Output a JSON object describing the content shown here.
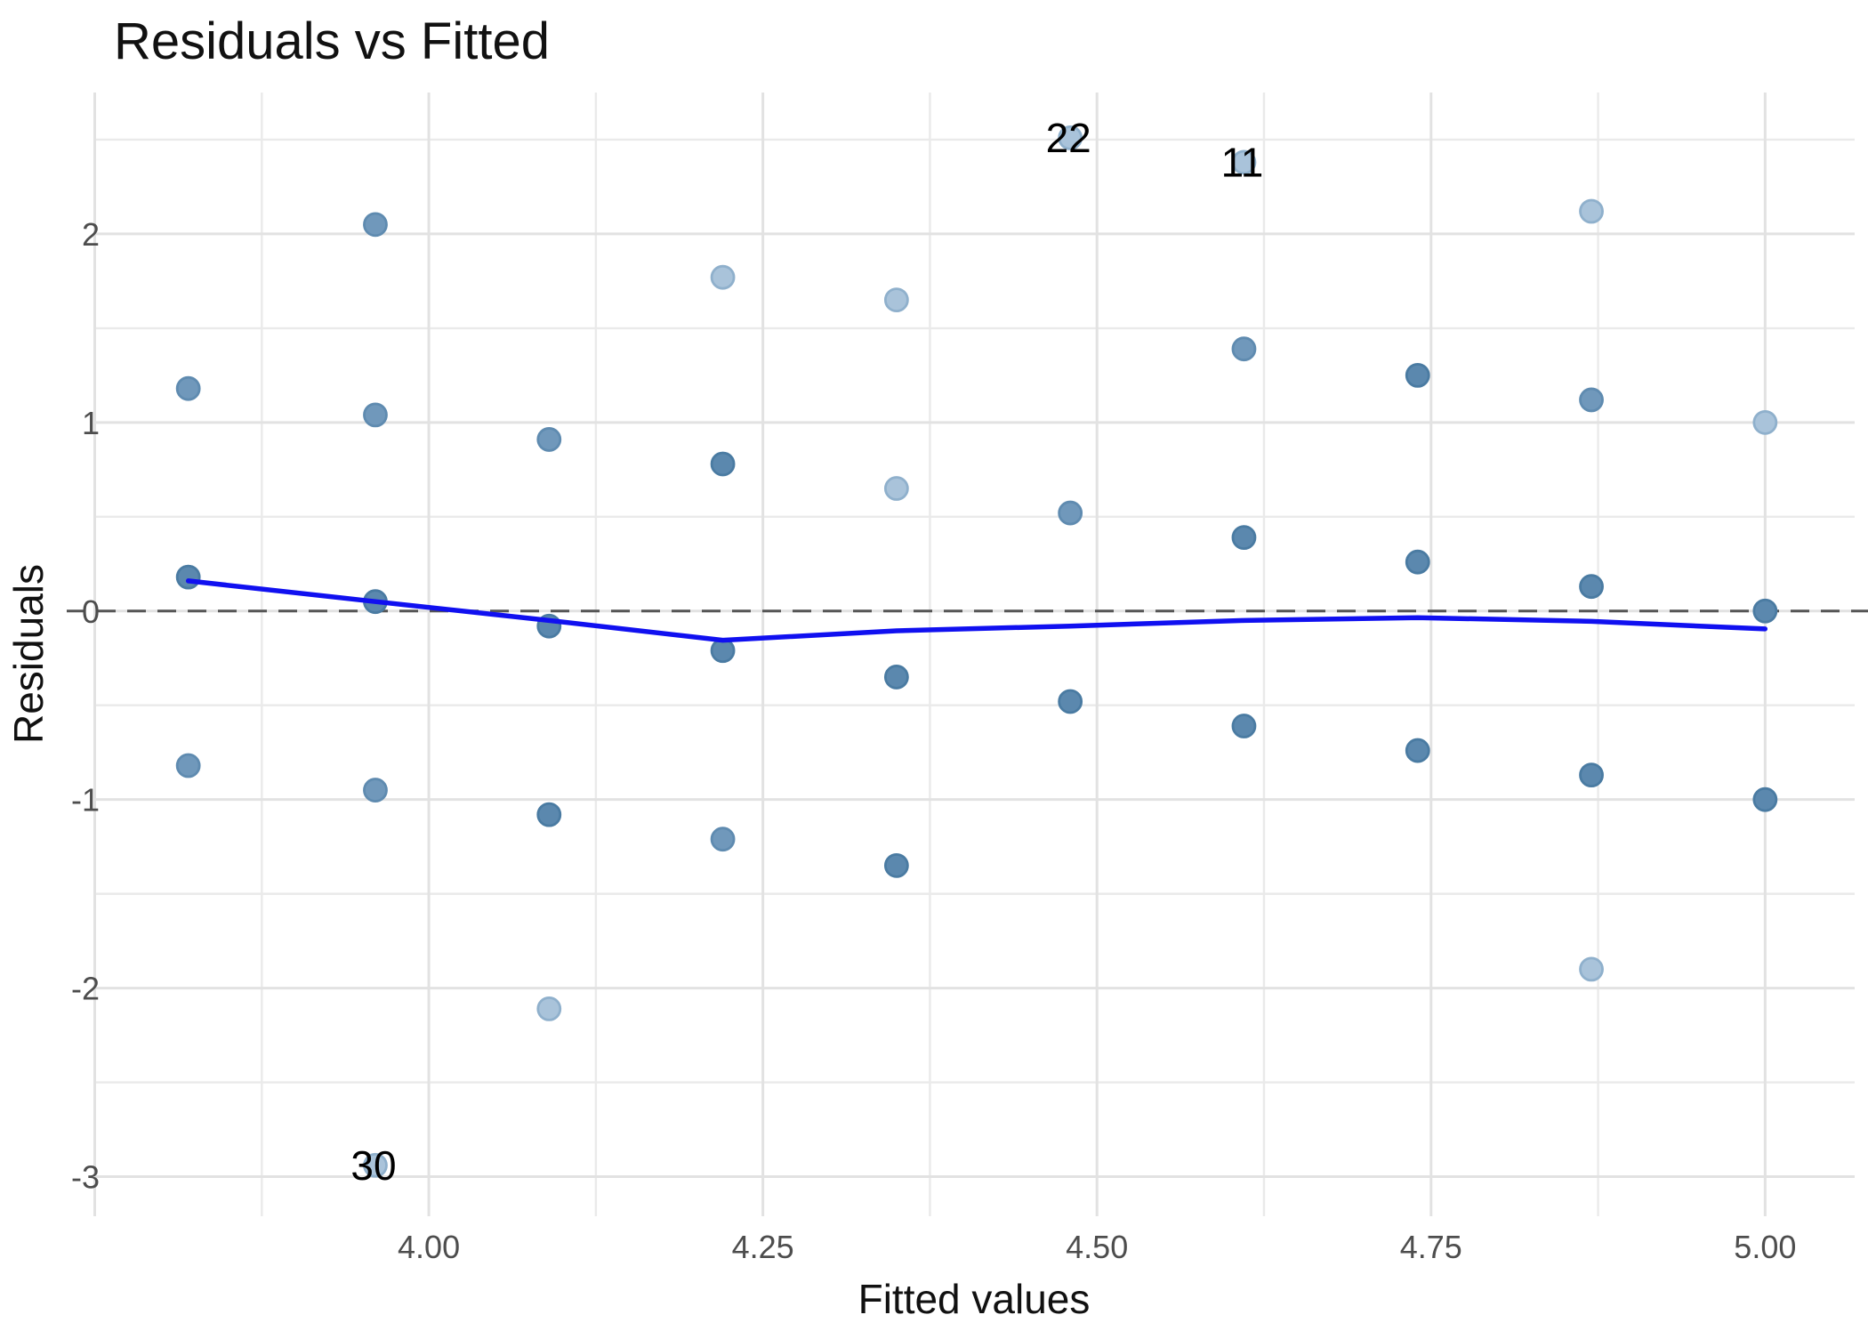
{
  "chart_data": {
    "type": "scatter",
    "title": "Residuals vs Fitted",
    "xlabel": "Fitted values",
    "ylabel": "Residuals",
    "grid": "on",
    "legend": "none",
    "xlim": [
      3.749,
      5.067
    ],
    "ylim": [
      -3.21,
      2.75
    ],
    "x_ticks": {
      "values": [
        4.0,
        4.25,
        4.5,
        4.75,
        5.0
      ],
      "labels": [
        "4.00",
        "4.25",
        "4.50",
        "4.75",
        "5.00"
      ]
    },
    "y_ticks": {
      "values": [
        -3,
        -2,
        -1,
        0,
        1,
        2
      ],
      "labels": [
        "-3",
        "-2",
        "-1",
        "0",
        "1",
        "2"
      ]
    },
    "x_grid_major_extra": [
      3.75
    ],
    "x_grid_minor": [
      3.875,
      4.125,
      4.375,
      4.625,
      4.875
    ],
    "y_grid_minor": [
      -2.5,
      -1.5,
      -0.5,
      0.5,
      1.5,
      2.5
    ],
    "colors": {
      "grid_major": "#e2e2e2",
      "grid_minor": "#eaeaea",
      "reference_line": "#555555",
      "smooth_line": "#1010f0",
      "title_text": "#111111",
      "tick_text": "#4d4d4d",
      "point_dark_fill": "#5b88ae",
      "point_dark_stroke": "#4a7ba2",
      "point_medium_fill": "#7098bb",
      "point_medium_stroke": "#5f8bb0",
      "point_light_fill": "#a9c3da",
      "point_light_stroke": "#8fb0cc"
    },
    "reference_line": {
      "y": 0,
      "style": "dashed"
    },
    "points": [
      {
        "x": 3.82,
        "y": 1.18,
        "shade": "medium"
      },
      {
        "x": 3.82,
        "y": 0.18,
        "shade": "dark"
      },
      {
        "x": 3.82,
        "y": -0.82,
        "shade": "medium"
      },
      {
        "x": 3.96,
        "y": 2.05,
        "shade": "medium"
      },
      {
        "x": 3.96,
        "y": 1.04,
        "shade": "medium"
      },
      {
        "x": 3.96,
        "y": 0.05,
        "shade": "dark"
      },
      {
        "x": 3.96,
        "y": -0.95,
        "shade": "medium"
      },
      {
        "x": 3.96,
        "y": -2.94,
        "shade": "light",
        "label": "30"
      },
      {
        "x": 4.09,
        "y": 0.91,
        "shade": "medium"
      },
      {
        "x": 4.09,
        "y": -0.08,
        "shade": "dark"
      },
      {
        "x": 4.09,
        "y": -1.08,
        "shade": "dark"
      },
      {
        "x": 4.09,
        "y": -2.11,
        "shade": "light"
      },
      {
        "x": 4.22,
        "y": 1.77,
        "shade": "light"
      },
      {
        "x": 4.22,
        "y": 0.78,
        "shade": "dark"
      },
      {
        "x": 4.22,
        "y": -0.21,
        "shade": "dark"
      },
      {
        "x": 4.22,
        "y": -1.21,
        "shade": "medium"
      },
      {
        "x": 4.35,
        "y": 1.65,
        "shade": "light"
      },
      {
        "x": 4.35,
        "y": 0.65,
        "shade": "light"
      },
      {
        "x": 4.35,
        "y": -0.35,
        "shade": "dark"
      },
      {
        "x": 4.35,
        "y": -1.35,
        "shade": "dark"
      },
      {
        "x": 4.48,
        "y": 2.51,
        "shade": "light",
        "label": "22"
      },
      {
        "x": 4.48,
        "y": 0.52,
        "shade": "medium"
      },
      {
        "x": 4.48,
        "y": -0.48,
        "shade": "dark"
      },
      {
        "x": 4.61,
        "y": 2.38,
        "shade": "light",
        "label": "11"
      },
      {
        "x": 4.61,
        "y": 1.39,
        "shade": "medium"
      },
      {
        "x": 4.61,
        "y": 0.39,
        "shade": "dark"
      },
      {
        "x": 4.61,
        "y": -0.61,
        "shade": "dark"
      },
      {
        "x": 4.74,
        "y": 1.25,
        "shade": "dark"
      },
      {
        "x": 4.74,
        "y": 0.26,
        "shade": "dark"
      },
      {
        "x": 4.74,
        "y": -0.74,
        "shade": "dark"
      },
      {
        "x": 4.87,
        "y": 2.12,
        "shade": "light"
      },
      {
        "x": 4.87,
        "y": 1.12,
        "shade": "medium"
      },
      {
        "x": 4.87,
        "y": 0.13,
        "shade": "dark"
      },
      {
        "x": 4.87,
        "y": -0.87,
        "shade": "dark"
      },
      {
        "x": 4.87,
        "y": -1.9,
        "shade": "light"
      },
      {
        "x": 5.0,
        "y": 1.0,
        "shade": "light"
      },
      {
        "x": 5.0,
        "y": 0.0,
        "shade": "dark"
      },
      {
        "x": 5.0,
        "y": -1.0,
        "shade": "dark"
      }
    ],
    "smooth_line": {
      "points": [
        [
          3.82,
          0.16
        ],
        [
          3.96,
          0.05
        ],
        [
          4.09,
          -0.05
        ],
        [
          4.22,
          -0.155
        ],
        [
          4.35,
          -0.105
        ],
        [
          4.48,
          -0.08
        ],
        [
          4.61,
          -0.05
        ],
        [
          4.74,
          -0.035
        ],
        [
          4.87,
          -0.055
        ],
        [
          5.0,
          -0.095
        ]
      ]
    }
  }
}
